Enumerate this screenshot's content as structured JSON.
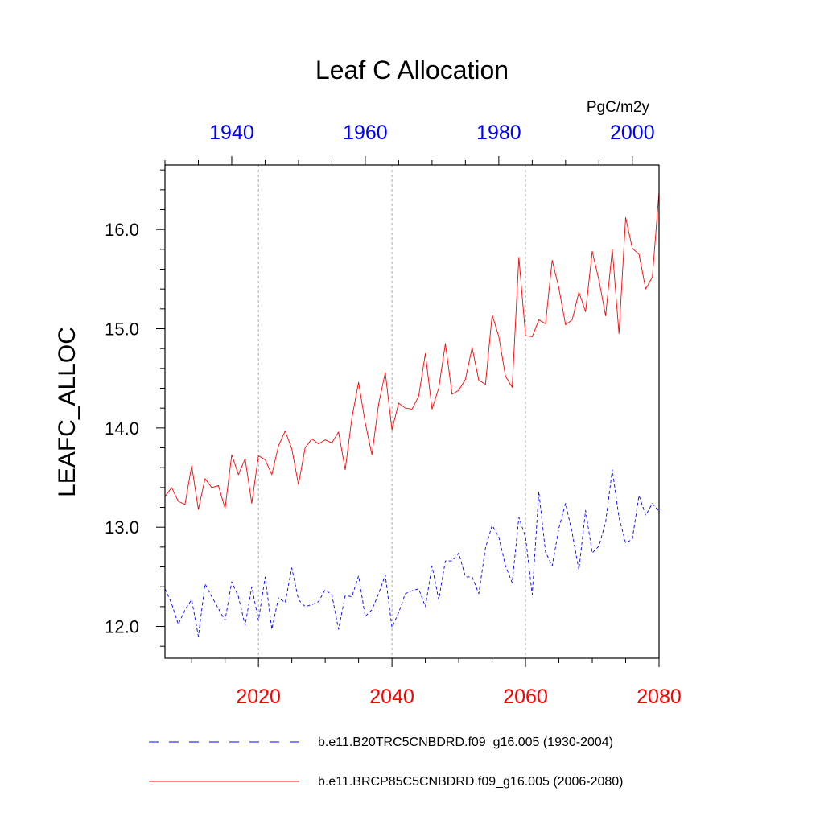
{
  "chart_data": {
    "type": "line",
    "title": "Leaf C Allocation",
    "ylabel": "LEAFC_ALLOC",
    "units": "PgC/m2y",
    "ylim": [
      11.68,
      16.65
    ],
    "yticks": [
      12.0,
      13.0,
      14.0,
      15.0,
      16.0
    ],
    "ytick_labels": [
      "12.0",
      "13.0",
      "14.0",
      "15.0",
      "16.0"
    ],
    "bottom_axis": {
      "range": [
        2006,
        2080
      ],
      "ticks": [
        2020,
        2040,
        2060,
        2080
      ],
      "tick_labels": [
        "2020",
        "2040",
        "2060",
        "2080"
      ],
      "color": "#ff0000"
    },
    "top_axis": {
      "range": [
        1930,
        2004
      ],
      "ticks": [
        1940,
        1960,
        1980,
        2000
      ],
      "tick_labels": [
        "1940",
        "1960",
        "1980",
        "2000"
      ],
      "color": "#0000ff"
    },
    "gridlines_x": [
      2020,
      2040,
      2060
    ],
    "series": [
      {
        "name": "b.e11.B20TRC5CNBDRD.f09_g16.005 (1930-2004)",
        "axis": "top",
        "color": "#0000ff",
        "style": "dashed",
        "x_start": 1930,
        "values": [
          12.38,
          12.23,
          12.02,
          12.17,
          12.27,
          11.9,
          12.43,
          12.3,
          12.18,
          12.06,
          12.45,
          12.3,
          12.01,
          12.4,
          12.06,
          12.5,
          11.97,
          12.29,
          12.24,
          12.59,
          12.27,
          12.2,
          12.22,
          12.25,
          12.37,
          12.32,
          11.97,
          12.31,
          12.3,
          12.51,
          12.1,
          12.17,
          12.33,
          12.52,
          11.99,
          12.14,
          12.33,
          12.36,
          12.38,
          12.2,
          12.61,
          12.27,
          12.66,
          12.66,
          12.74,
          12.5,
          12.5,
          12.33,
          12.79,
          13.02,
          12.9,
          12.61,
          12.44,
          13.1,
          12.9,
          12.32,
          13.36,
          12.75,
          12.61,
          12.99,
          13.24,
          12.94,
          12.57,
          13.17,
          12.74,
          12.81,
          13.05,
          13.58,
          13.1,
          12.84,
          12.88,
          13.32,
          13.12,
          13.24,
          13.16
        ]
      },
      {
        "name": "b.e11.BRCP85C5CNBDRD.f09_g16.005 (2006-2080)",
        "axis": "bottom",
        "color": "#ff0000",
        "style": "solid",
        "x_start": 2006,
        "values": [
          13.31,
          13.4,
          13.26,
          13.23,
          13.62,
          13.18,
          13.49,
          13.4,
          13.42,
          13.19,
          13.73,
          13.53,
          13.69,
          13.24,
          13.72,
          13.68,
          13.53,
          13.82,
          13.97,
          13.79,
          13.43,
          13.8,
          13.89,
          13.84,
          13.88,
          13.85,
          13.96,
          13.58,
          14.1,
          14.46,
          14.05,
          13.73,
          14.24,
          14.56,
          13.98,
          14.25,
          14.2,
          14.19,
          14.32,
          14.75,
          14.19,
          14.4,
          14.85,
          14.34,
          14.38,
          14.49,
          14.81,
          14.48,
          14.44,
          15.14,
          14.92,
          14.52,
          14.41,
          15.72,
          14.93,
          14.92,
          15.09,
          15.05,
          15.69,
          15.41,
          15.04,
          15.09,
          15.37,
          15.17,
          15.78,
          15.49,
          15.13,
          15.8,
          14.95,
          16.12,
          15.81,
          15.75,
          15.4,
          15.52,
          16.38
        ]
      }
    ]
  }
}
